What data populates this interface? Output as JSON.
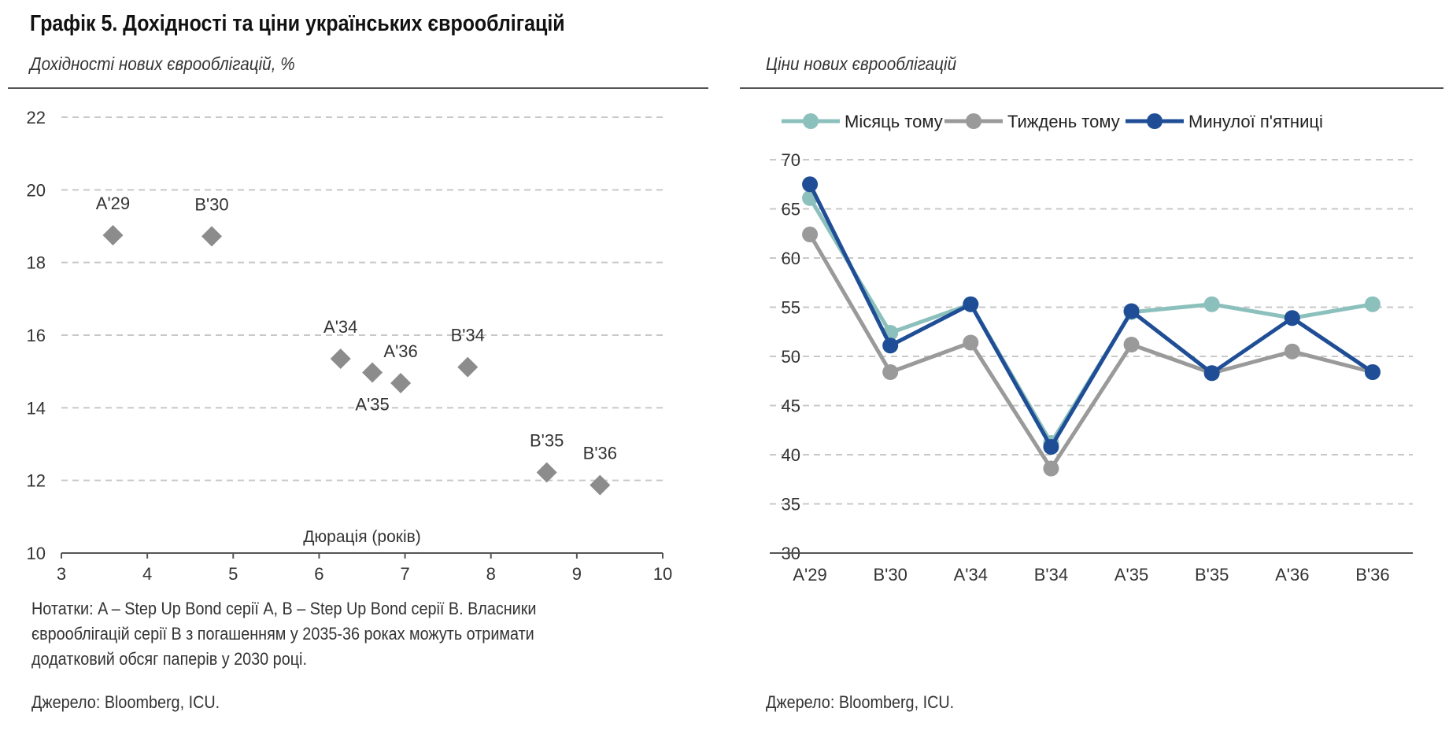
{
  "title": "Графік 5. Дохідності та ціни українських єврооблігацій",
  "left": {
    "subtitle": "Дохідності нових єврооблігацій, %",
    "notes": "Нотатки: A – Step Up Bond серії A, B – Step Up Bond серії B. Власники єврооблігацій серії B з погашенням у 2035-36 роках можуть отримати додатковий обсяг паперів у 2030 році.",
    "source": "Джерело: Bloomberg, ICU."
  },
  "right": {
    "subtitle": "Ціни нових єврооблігацій",
    "source": "Джерело: Bloomberg, ICU."
  },
  "colors": {
    "scatter_marker": "#8c8c8c",
    "month_ago": "#8cc0bc",
    "week_ago": "#9a9a9a",
    "last_friday": "#1f4e96",
    "grid": "#c8c8c8",
    "axis": "#555555"
  },
  "chart_data": [
    {
      "type": "scatter",
      "title": "Дохідності нових єврооблігацій, %",
      "xlabel": "Дюрація (років)",
      "ylabel": "",
      "xlim": [
        3,
        10
      ],
      "ylim": [
        10,
        22
      ],
      "xticks": [
        3,
        4,
        5,
        6,
        7,
        8,
        9,
        10
      ],
      "yticks": [
        10,
        12,
        14,
        16,
        18,
        20,
        22
      ],
      "grid": "horizontal dashed",
      "points": [
        {
          "label": "A'29",
          "x": 3.6,
          "y": 18.75,
          "label_pos": "above"
        },
        {
          "label": "B'30",
          "x": 4.75,
          "y": 18.72,
          "label_pos": "above"
        },
        {
          "label": "A'34",
          "x": 6.25,
          "y": 15.35,
          "label_pos": "above"
        },
        {
          "label": "A'35",
          "x": 6.62,
          "y": 14.97,
          "label_pos": "below"
        },
        {
          "label": "A'36",
          "x": 6.95,
          "y": 14.68,
          "label_pos": "above"
        },
        {
          "label": "B'34",
          "x": 7.73,
          "y": 15.12,
          "label_pos": "above"
        },
        {
          "label": "B'35",
          "x": 8.65,
          "y": 12.22,
          "label_pos": "above"
        },
        {
          "label": "B'36",
          "x": 9.27,
          "y": 11.87,
          "label_pos": "above"
        }
      ]
    },
    {
      "type": "line",
      "title": "Ціни нових єврооблігацій",
      "categories": [
        "A'29",
        "B'30",
        "A'34",
        "B'34",
        "A'35",
        "B'35",
        "A'36",
        "B'36"
      ],
      "ylim": [
        30,
        70
      ],
      "yticks": [
        30,
        35,
        40,
        45,
        50,
        55,
        60,
        65,
        70
      ],
      "grid": "horizontal dashed",
      "legend": "top",
      "series": [
        {
          "name": "Місяць тому",
          "color_key": "month_ago",
          "values": [
            66.1,
            52.4,
            55.3,
            41.2,
            54.5,
            55.3,
            53.9,
            55.3
          ]
        },
        {
          "name": "Тиждень тому",
          "color_key": "week_ago",
          "values": [
            62.4,
            48.4,
            51.4,
            38.6,
            51.2,
            48.3,
            50.5,
            48.4
          ]
        },
        {
          "name": "Минулої п'ятниці",
          "color_key": "last_friday",
          "values": [
            67.5,
            51.1,
            55.3,
            40.8,
            54.6,
            48.3,
            53.9,
            48.4
          ]
        }
      ]
    }
  ]
}
